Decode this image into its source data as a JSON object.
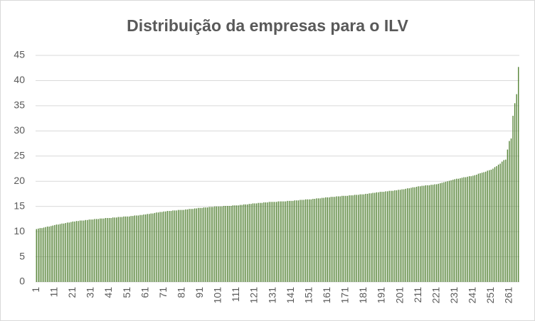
{
  "chart_data": {
    "type": "bar",
    "title": "Distribuição da empresas para o ILV",
    "categories": [
      1,
      null,
      null,
      null,
      null,
      null,
      null,
      null,
      null,
      null,
      11,
      null,
      null,
      null,
      null,
      null,
      null,
      null,
      null,
      null,
      21,
      null,
      null,
      null,
      null,
      null,
      null,
      null,
      null,
      null,
      31,
      null,
      null,
      null,
      null,
      null,
      null,
      null,
      null,
      null,
      41,
      null,
      null,
      null,
      null,
      null,
      null,
      null,
      null,
      null,
      51,
      null,
      null,
      null,
      null,
      null,
      null,
      null,
      null,
      null,
      61,
      null,
      null,
      null,
      null,
      null,
      null,
      null,
      null,
      null,
      71,
      null,
      null,
      null,
      null,
      null,
      null,
      null,
      null,
      null,
      81,
      null,
      null,
      null,
      null,
      null,
      null,
      null,
      null,
      null,
      91,
      null,
      null,
      null,
      null,
      null,
      null,
      null,
      null,
      null,
      101,
      null,
      null,
      null,
      null,
      null,
      null,
      null,
      null,
      null,
      111,
      null,
      null,
      null,
      null,
      null,
      null,
      null,
      null,
      null,
      121,
      null,
      null,
      null,
      null,
      null,
      null,
      null,
      null,
      null,
      131,
      null,
      null,
      null,
      null,
      null,
      null,
      null,
      null,
      null,
      141,
      null,
      null,
      null,
      null,
      null,
      null,
      null,
      null,
      null,
      151,
      null,
      null,
      null,
      null,
      null,
      null,
      null,
      null,
      null,
      161,
      null,
      null,
      null,
      null,
      null,
      null,
      null,
      null,
      null,
      171,
      null,
      null,
      null,
      null,
      null,
      null,
      null,
      null,
      null,
      181,
      null,
      null,
      null,
      null,
      null,
      null,
      null,
      null,
      null,
      191,
      null,
      null,
      null,
      null,
      null,
      null,
      null,
      null,
      null,
      201,
      null,
      null,
      null,
      null,
      null,
      null,
      null,
      null,
      null,
      211,
      null,
      null,
      null,
      null,
      null,
      null,
      null,
      null,
      null,
      221,
      null,
      null,
      null,
      null,
      null,
      null,
      null,
      null,
      null,
      231,
      null,
      null,
      null,
      null,
      null,
      null,
      null,
      null,
      null,
      241,
      null,
      null,
      null,
      null,
      null,
      null,
      null,
      null,
      null,
      251,
      null,
      null,
      null,
      null,
      null,
      null,
      null,
      null,
      null,
      261,
      null,
      null,
      null,
      null,
      null
    ],
    "values": [
      10.5,
      10.6,
      10.7,
      10.7,
      10.8,
      10.9,
      11.0,
      11.0,
      11.1,
      11.2,
      11.3,
      11.4,
      11.4,
      11.5,
      11.6,
      11.6,
      11.7,
      11.8,
      11.8,
      11.9,
      12.0,
      12.0,
      12.1,
      12.1,
      12.2,
      12.2,
      12.2,
      12.3,
      12.3,
      12.4,
      12.4,
      12.4,
      12.5,
      12.5,
      12.5,
      12.6,
      12.6,
      12.6,
      12.7,
      12.7,
      12.7,
      12.7,
      12.8,
      12.8,
      12.8,
      12.9,
      12.9,
      12.9,
      13.0,
      13.0,
      13.0,
      13.0,
      13.1,
      13.1,
      13.2,
      13.2,
      13.2,
      13.3,
      13.3,
      13.4,
      13.4,
      13.5,
      13.5,
      13.6,
      13.6,
      13.7,
      13.8,
      13.8,
      13.9,
      13.9,
      14.0,
      14.0,
      14.1,
      14.1,
      14.1,
      14.2,
      14.2,
      14.2,
      14.3,
      14.3,
      14.3,
      14.3,
      14.4,
      14.4,
      14.5,
      14.5,
      14.5,
      14.6,
      14.6,
      14.7,
      14.7,
      14.7,
      14.8,
      14.8,
      14.8,
      14.9,
      14.9,
      14.9,
      15.0,
      15.0,
      15.0,
      15.0,
      15.0,
      15.1,
      15.1,
      15.1,
      15.1,
      15.1,
      15.2,
      15.2,
      15.2,
      15.2,
      15.3,
      15.3,
      15.4,
      15.4,
      15.4,
      15.5,
      15.5,
      15.6,
      15.6,
      15.6,
      15.7,
      15.7,
      15.7,
      15.8,
      15.8,
      15.8,
      15.9,
      15.9,
      15.9,
      15.9,
      15.9,
      16.0,
      16.0,
      16.0,
      16.0,
      16.0,
      16.1,
      16.1,
      16.1,
      16.1,
      16.2,
      16.2,
      16.2,
      16.3,
      16.3,
      16.3,
      16.4,
      16.4,
      16.4,
      16.4,
      16.5,
      16.5,
      16.6,
      16.6,
      16.6,
      16.7,
      16.7,
      16.8,
      16.8,
      16.8,
      16.9,
      16.9,
      16.9,
      17.0,
      17.0,
      17.0,
      17.1,
      17.1,
      17.1,
      17.1,
      17.2,
      17.2,
      17.2,
      17.3,
      17.3,
      17.3,
      17.4,
      17.4,
      17.4,
      17.5,
      17.5,
      17.6,
      17.6,
      17.7,
      17.7,
      17.8,
      17.8,
      17.9,
      17.9,
      17.9,
      18.0,
      18.0,
      18.1,
      18.1,
      18.1,
      18.2,
      18.2,
      18.3,
      18.3,
      18.4,
      18.4,
      18.5,
      18.6,
      18.6,
      18.7,
      18.8,
      18.8,
      18.9,
      19.0,
      19.0,
      19.1,
      19.1,
      19.2,
      19.2,
      19.2,
      19.3,
      19.3,
      19.4,
      19.4,
      19.5,
      19.6,
      19.7,
      19.8,
      19.9,
      20.0,
      20.1,
      20.2,
      20.3,
      20.4,
      20.5,
      20.5,
      20.6,
      20.7,
      20.8,
      20.8,
      20.9,
      21.0,
      21.0,
      21.1,
      21.2,
      21.3,
      21.5,
      21.6,
      21.7,
      21.8,
      21.9,
      22.1,
      22.2,
      22.3,
      22.5,
      22.8,
      23.0,
      23.3,
      23.5,
      23.9,
      24.2,
      24.3,
      26.3,
      28.0,
      28.5,
      33.0,
      35.5,
      37.3,
      42.7
    ],
    "color": "#548235",
    "ylim": [
      0,
      45
    ],
    "yticks": [
      0,
      5,
      10,
      15,
      20,
      25,
      30,
      35,
      40,
      45
    ],
    "grid": true
  }
}
